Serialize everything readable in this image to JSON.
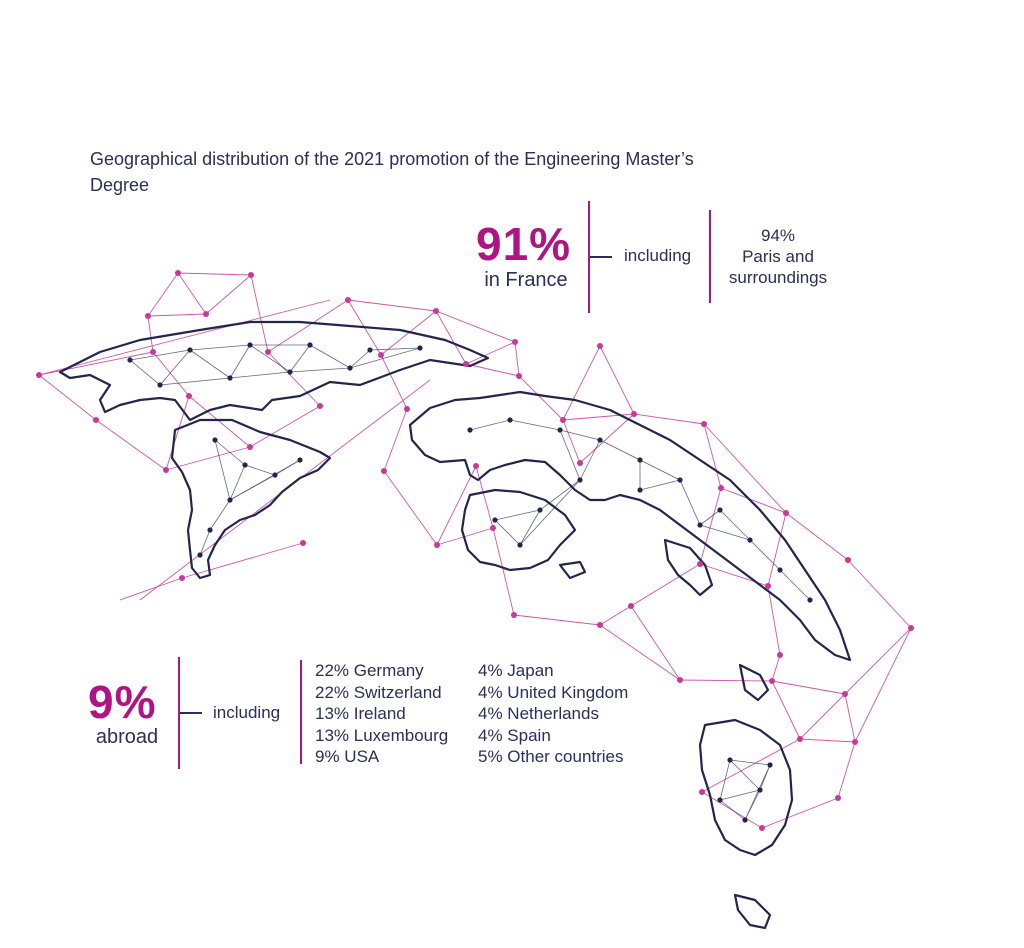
{
  "title": "Geographical distribution of the 2021 promotion of the Engineering Master’s Degree",
  "france": {
    "percent": "91%",
    "label": "in France",
    "including": "including",
    "detail_percent": "94%",
    "detail_label": "Paris and surroundings"
  },
  "abroad": {
    "percent": "9%",
    "label": "abroad",
    "including": "including",
    "countries_col1": [
      "22% Germany",
      "22% Switzerland",
      "13% Ireland",
      "13% Luxembourg",
      "9% USA"
    ],
    "countries_col2": [
      "4% Japan",
      "4% United Kingdom",
      "4% Netherlands",
      "4% Spain",
      "5% Other countries"
    ]
  },
  "colors": {
    "accent": "#b01482",
    "text": "#2a2f5c",
    "network": "#c8399b"
  }
}
